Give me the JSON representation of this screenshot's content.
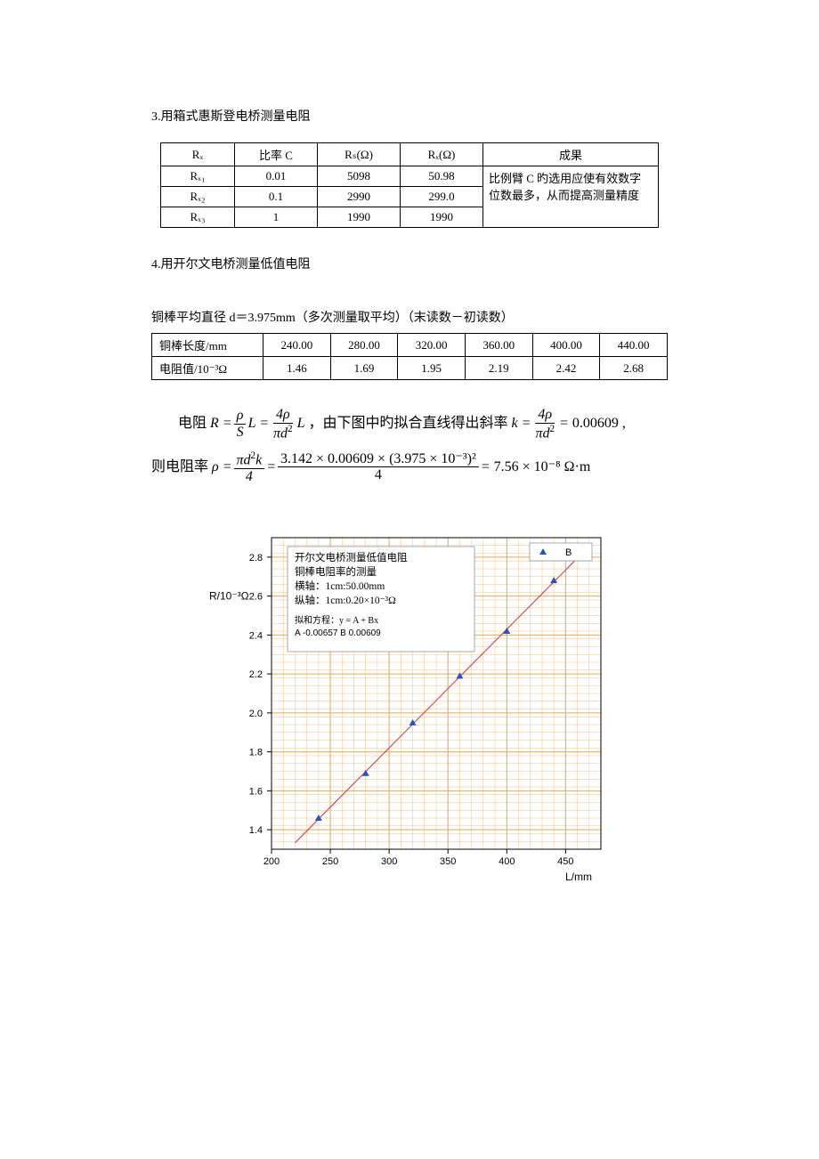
{
  "section3": {
    "title": "3.用箱式惠斯登电桥测量电阻",
    "headers": [
      "Rₓ",
      "比率 C",
      "Rₛ(Ω)",
      "Rₓ(Ω)",
      "成果"
    ],
    "rows": [
      [
        "Rₓ₁",
        "0.01",
        "5098",
        "50.98"
      ],
      [
        "Rₓ₂",
        "0.1",
        "2990",
        "299.0"
      ],
      [
        "Rₓ₃",
        "1",
        "1990",
        "1990"
      ]
    ],
    "note": "比例臂 C 旳选用应使有效数字位数最多，从而提高测量精度"
  },
  "section4": {
    "title": "4.用开尔文电桥测量低值电阻",
    "subtitle": "铜棒平均直径 d＝3.975mm（多次测量取平均）（末读数－初读数）",
    "row_labels": [
      "铜棒长度/mm",
      "电阻值/10⁻³Ω"
    ],
    "lengths": [
      "240.00",
      "280.00",
      "320.00",
      "360.00",
      "400.00",
      "440.00"
    ],
    "resistances": [
      "1.46",
      "1.69",
      "1.95",
      "2.19",
      "2.42",
      "2.68"
    ]
  },
  "formula": {
    "line1_prefix": "电阻",
    "line1_mid": "，由下图中旳拟合直线得出斜率",
    "k_value": "0.00609",
    "line2_prefix": "则电阻率",
    "rho_num": "3.142 × 0.00609 × (3.975 × 10⁻³)²",
    "rho_den": "4",
    "rho_result": "7.56 × 10⁻⁸ Ω·m"
  },
  "chart": {
    "type": "scatter",
    "title_lines": [
      "开尔文电桥测量低值电阻",
      "铜棒电阻率的测量",
      "横轴：1cm:50.00mm",
      "纵轴：1cm:0.20×10⁻³Ω"
    ],
    "fit_label": "拟和方程：y = A + Bx",
    "fit_params": "A    -0.00657        B        0.00609",
    "legend": "B",
    "x_label": "L/mm",
    "y_label": "R/10⁻³Ω",
    "xlim": [
      200,
      480
    ],
    "ylim": [
      1.3,
      2.9
    ],
    "xticks": [
      200,
      250,
      300,
      350,
      400,
      450
    ],
    "yticks": [
      1.4,
      1.6,
      1.8,
      2.0,
      2.2,
      2.4,
      2.6,
      2.8
    ],
    "points_x": [
      240,
      280,
      320,
      360,
      400,
      440
    ],
    "points_y": [
      1.46,
      1.69,
      1.95,
      2.19,
      2.42,
      2.68
    ],
    "grid_color": "#e8a658",
    "minor_grid_color": "#f0c088",
    "line_color": "#cc3333",
    "marker_color": "#2a52be",
    "bg_color": "#ffffff",
    "axis_color": "#000000",
    "text_color": "#000000"
  }
}
